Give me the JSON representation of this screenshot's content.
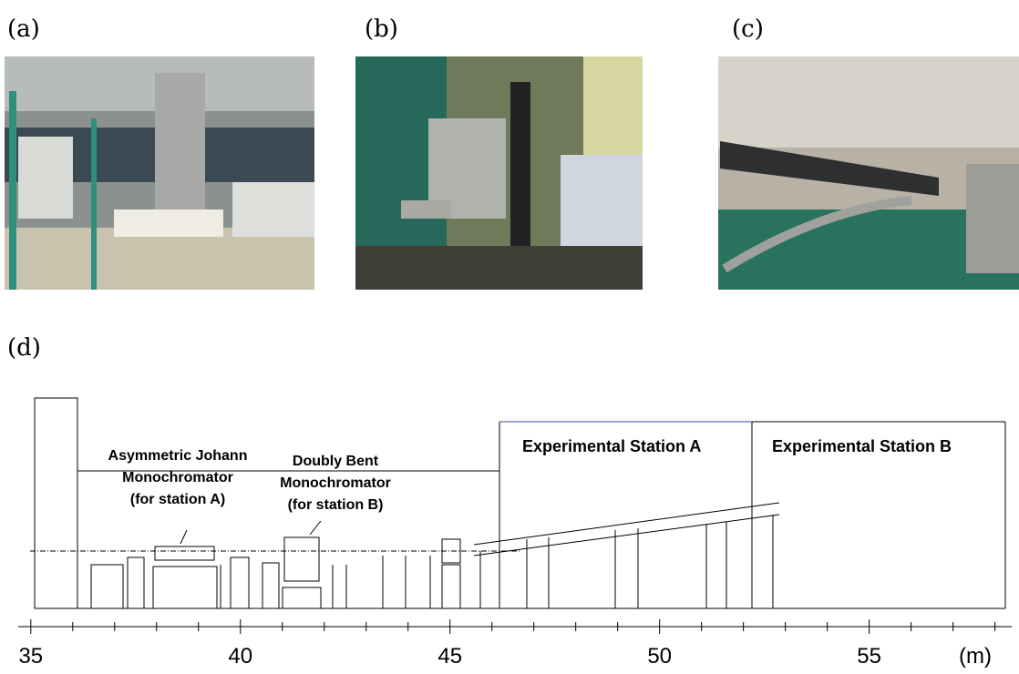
{
  "panels": {
    "a": "(a)",
    "b": "(b)",
    "c": "(c)",
    "d": "(d)"
  },
  "diagram": {
    "labels": {
      "johann": [
        "Asymmetric Johann",
        "Monochromator",
        "(for station A)"
      ],
      "doubly": [
        "Doubly Bent",
        "Monochromator",
        "(for station B)"
      ],
      "station_a": "Experimental Station A",
      "station_b": "Experimental Station B"
    },
    "scale": {
      "xlim": [
        34.7,
        58.4
      ],
      "xticks": [
        35,
        40,
        45,
        50,
        55
      ],
      "minor_xticks": [
        36,
        37,
        38,
        39,
        41,
        42,
        43,
        44,
        46,
        47,
        48,
        49,
        51,
        52,
        53,
        54,
        56,
        57,
        58
      ],
      "unit": "(m)"
    }
  }
}
